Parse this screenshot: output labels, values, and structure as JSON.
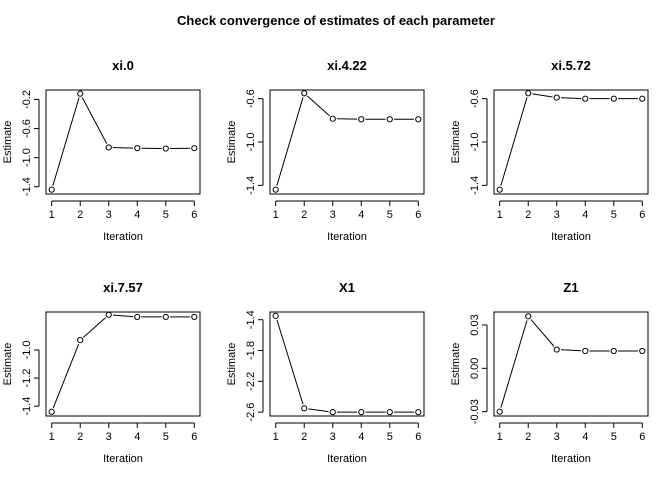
{
  "figure": {
    "title": "Check convergence of estimates of each parameter"
  },
  "chart_data": [
    {
      "type": "line",
      "title": "xi.0",
      "xlabel": "Iteration",
      "ylabel": "Estimate",
      "x": [
        1,
        2,
        3,
        4,
        5,
        6
      ],
      "values": [
        -1.44,
        -0.12,
        -0.86,
        -0.87,
        -0.875,
        -0.87
      ],
      "xticks": [
        1,
        2,
        3,
        4,
        5,
        6
      ],
      "yticks": [
        -1.4,
        -1.0,
        -0.6,
        -0.2
      ],
      "ytick_labels": [
        "-1.4",
        "-1.0",
        "-0.6",
        "-0.2"
      ],
      "ylim": [
        -1.5,
        -0.07
      ],
      "grid": false
    },
    {
      "type": "line",
      "title": "xi.4.22",
      "xlabel": "Iteration",
      "ylabel": "Estimate",
      "x": [
        1,
        2,
        3,
        4,
        5,
        6
      ],
      "values": [
        -1.44,
        -0.55,
        -0.785,
        -0.79,
        -0.79,
        -0.79
      ],
      "xticks": [
        1,
        2,
        3,
        4,
        5,
        6
      ],
      "yticks": [
        -1.4,
        -1.0,
        -0.6
      ],
      "ytick_labels": [
        "-1.4",
        "-1.0",
        "-0.6"
      ],
      "ylim": [
        -1.48,
        -0.52
      ],
      "grid": false
    },
    {
      "type": "line",
      "title": "xi.5.72",
      "xlabel": "Iteration",
      "ylabel": "Estimate",
      "x": [
        1,
        2,
        3,
        4,
        5,
        6
      ],
      "values": [
        -1.44,
        -0.55,
        -0.59,
        -0.6,
        -0.6,
        -0.6
      ],
      "xticks": [
        1,
        2,
        3,
        4,
        5,
        6
      ],
      "yticks": [
        -1.4,
        -1.0,
        -0.6
      ],
      "ytick_labels": [
        "-1.4",
        "-1.0",
        "-0.6"
      ],
      "ylim": [
        -1.48,
        -0.52
      ],
      "grid": false
    },
    {
      "type": "line",
      "title": "xi.7.57",
      "xlabel": "Iteration",
      "ylabel": "Estimate",
      "x": [
        1,
        2,
        3,
        4,
        5,
        6
      ],
      "values": [
        -1.44,
        -0.93,
        -0.75,
        -0.765,
        -0.765,
        -0.765
      ],
      "xticks": [
        1,
        2,
        3,
        4,
        5,
        6
      ],
      "yticks": [
        -1.4,
        -1.2,
        -1.0
      ],
      "ytick_labels": [
        "-1.4",
        "-1.2",
        "-1.0"
      ],
      "ylim": [
        -1.47,
        -0.73
      ],
      "grid": false
    },
    {
      "type": "line",
      "title": "X1",
      "xlabel": "Iteration",
      "ylabel": "Estimate",
      "x": [
        1,
        2,
        3,
        4,
        5,
        6
      ],
      "values": [
        -1.35,
        -2.55,
        -2.6,
        -2.6,
        -2.6,
        -2.6
      ],
      "xticks": [
        1,
        2,
        3,
        4,
        5,
        6
      ],
      "yticks": [
        -2.6,
        -2.2,
        -1.8,
        -1.4
      ],
      "ytick_labels": [
        "-2.6",
        "-2.2",
        "-1.8",
        "-1.4"
      ],
      "ylim": [
        -2.65,
        -1.3
      ],
      "grid": false
    },
    {
      "type": "line",
      "title": "Z1",
      "xlabel": "Iteration",
      "ylabel": "Estimate",
      "x": [
        1,
        2,
        3,
        4,
        5,
        6
      ],
      "values": [
        -0.03,
        0.036,
        0.013,
        0.012,
        0.012,
        0.012
      ],
      "xticks": [
        1,
        2,
        3,
        4,
        5,
        6
      ],
      "yticks": [
        -0.03,
        0.0,
        0.03
      ],
      "ytick_labels": [
        "-0.03",
        "0.00",
        "0.03"
      ],
      "ylim": [
        -0.033,
        0.039
      ],
      "grid": false
    }
  ]
}
